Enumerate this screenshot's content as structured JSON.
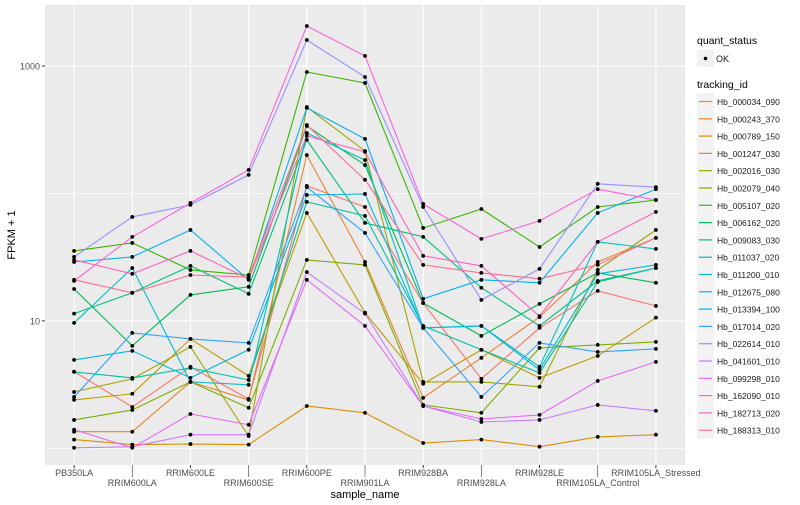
{
  "chart_data": {
    "type": "line",
    "xlabel": "sample_name",
    "ylabel": "FPKM + 1",
    "y_scale": "log10",
    "ylim": [
      0.74,
      3010
    ],
    "y_ticks": [
      10,
      1000
    ],
    "y_tick_labels": [
      "10",
      "1000"
    ],
    "grid": true,
    "panel_background": "#EBEBEB",
    "legend_position": "right",
    "categories": [
      "PB350LA",
      "RRIM600LA",
      "RRIM600LE",
      "RRIM600SE",
      "RRIM600PE",
      "RRIM901LA",
      "RRIM928BA",
      "RRIM928LA",
      "RRIM928LE",
      "RRIM105LA_Control",
      "RRIM105LA_Stressed"
    ],
    "shape_legend": {
      "title": "quant_status",
      "entries": [
        "OK"
      ]
    },
    "color_legend_title": "tracking_id",
    "series": [
      {
        "name": "Hb_000034_090",
        "color": "#F8766D",
        "values": [
          4.0,
          2.11,
          4.36,
          2.44,
          114.5,
          78.3,
          13.8,
          3.51,
          8.81,
          17.2,
          13.1
        ]
      },
      {
        "name": "Hb_000243_370",
        "color": "#EA8331",
        "values": [
          1.35,
          1.35,
          3.32,
          2.4,
          200,
          29.0,
          2.49,
          5.13,
          10.7,
          29.0,
          44.8
        ]
      },
      {
        "name": "Hb_000789_150",
        "color": "#D89000",
        "values": [
          1.17,
          1.07,
          1.08,
          1.07,
          2.15,
          1.9,
          1.1,
          1.17,
          1.03,
          1.23,
          1.28
        ]
      },
      {
        "name": "Hb_001247_030",
        "color": "#C09B00",
        "values": [
          2.4,
          2.68,
          7.22,
          3.7,
          70.3,
          11.6,
          3.21,
          5.93,
          3.57,
          5.31,
          10.6
        ]
      },
      {
        "name": "Hb_002016_030",
        "color": "#A3A500",
        "values": [
          2.77,
          3.51,
          6.25,
          1.25,
          477,
          215,
          3.32,
          3.32,
          3.04,
          25.1,
          51.7
        ]
      },
      {
        "name": "Hb_002079_040",
        "color": "#7CAE00",
        "values": [
          1.67,
          2.0,
          3.32,
          2.08,
          30.1,
          27.5,
          2.19,
          1.9,
          6.14,
          6.48,
          6.84
        ]
      },
      {
        "name": "Hb_005107_020",
        "color": "#39B600",
        "values": [
          35.4,
          40.9,
          25.1,
          22.9,
          897,
          736,
          53.6,
          75.5,
          38.0,
          78.3,
          88.9
        ]
      },
      {
        "name": "Hb_006162_020",
        "color": "#00BB4E",
        "values": [
          17.8,
          6.37,
          16.0,
          18.5,
          338,
          167,
          13.8,
          7.63,
          13.6,
          23.8,
          19.9
        ]
      },
      {
        "name": "Hb_009083_030",
        "color": "#00BF7D",
        "values": [
          11.4,
          16.6,
          27.0,
          16.3,
          263,
          58.7,
          45.6,
          18.2,
          9.14,
          20.6,
          26.0
        ]
      },
      {
        "name": "Hb_011037_020",
        "color": "#00C1A3",
        "values": [
          3.98,
          3.57,
          4.28,
          3.44,
          85.8,
          66.6,
          9.14,
          5.93,
          3.91,
          20.2,
          26.0
        ]
      },
      {
        "name": "Hb_011200_010",
        "color": "#00BFC4",
        "values": [
          9.64,
          26.0,
          3.32,
          3.15,
          298,
          183,
          8.81,
          9.14,
          4.36,
          41.7,
          36.7
        ]
      },
      {
        "name": "Hb_012675_080",
        "color": "#00BAE0",
        "values": [
          4.94,
          5.82,
          3.57,
          5.93,
          97.3,
          99.1,
          8.81,
          9.14,
          4.13,
          23.4,
          27.5
        ]
      },
      {
        "name": "Hb_013394_100",
        "color": "#00B0F6",
        "values": [
          29.0,
          31.8,
          51.7,
          21.0,
          469,
          268,
          14.9,
          21.0,
          19.9,
          70.3,
          108
        ]
      },
      {
        "name": "Hb_017014_020",
        "color": "#35A2FF",
        "values": [
          2.53,
          8.05,
          7.22,
          6.72,
          112,
          49.0,
          8.81,
          2.53,
          6.72,
          5.71,
          6.03
        ]
      },
      {
        "name": "Hb_022614_010",
        "color": "#9590FF",
        "values": [
          31.8,
          65.4,
          81.3,
          140,
          1600,
          820,
          78.3,
          14.6,
          25.6,
          119,
          112
        ]
      },
      {
        "name": "Hb_041601_010",
        "color": "#C77CFF",
        "values": [
          1.01,
          1.03,
          1.28,
          1.28,
          24.2,
          11.4,
          2.15,
          1.61,
          1.67,
          2.19,
          1.97
        ]
      },
      {
        "name": "Hb_099298_010",
        "color": "#E76BF3",
        "values": [
          1.4,
          1.01,
          1.86,
          1.53,
          21.0,
          9.14,
          2.15,
          1.7,
          1.83,
          3.38,
          4.77
        ]
      },
      {
        "name": "Hb_162090_010",
        "color": "#FA62DB",
        "values": [
          20.6,
          45.6,
          84.2,
          153,
          2060,
          1200,
          82.7,
          44.0,
          60.9,
          108,
          88.9
        ]
      },
      {
        "name": "Hb_182713_020",
        "color": "#FF62BC",
        "values": [
          30.1,
          23.4,
          35.4,
          21.4,
          283,
          212,
          32.4,
          27.0,
          10.9,
          41.7,
          71.6
        ]
      },
      {
        "name": "Hb_188313_010",
        "color": "#FF6C91",
        "values": [
          21.0,
          16.6,
          22.9,
          22.1,
          344,
          128,
          27.5,
          23.8,
          21.4,
          27.5,
          44.8
        ]
      }
    ]
  }
}
